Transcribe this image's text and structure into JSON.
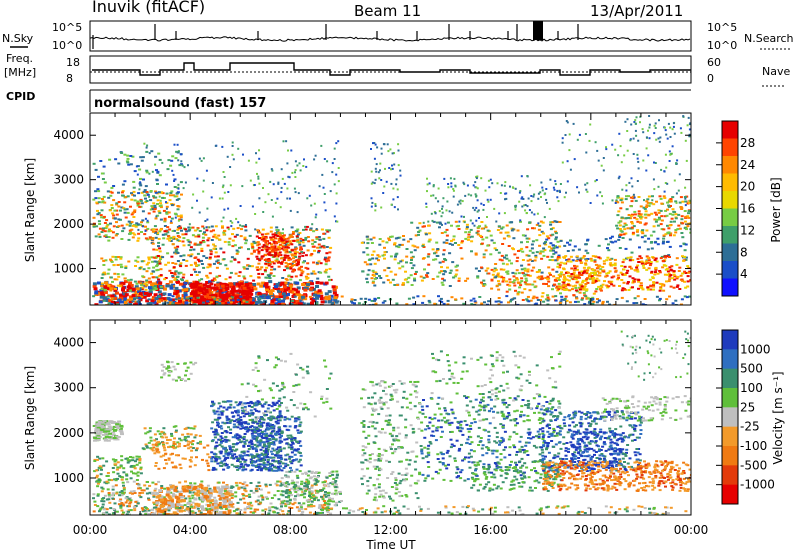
{
  "header": {
    "station": "Inuvik (fitACF)",
    "beam": "Beam 11",
    "date": "13/Apr/2011"
  },
  "sky_panel": {
    "left_label": "N.Sky",
    "right_label": "N.Search",
    "left_ticks": [
      "10^5",
      "10^0"
    ],
    "right_ticks": [
      "10^5",
      "10^0"
    ]
  },
  "freq_panel": {
    "left_label_line1": "Freq.",
    "left_label_line2": "[MHz]",
    "right_label": "Nave",
    "left_ticks": [
      "18",
      "8"
    ],
    "right_ticks": [
      "60",
      "0"
    ]
  },
  "cpid": {
    "label": "CPID",
    "value": "normalsound (fast) 157"
  },
  "chart_data": [
    {
      "type": "heatmap",
      "name": "power",
      "ylabel": "Slant Range [km]",
      "ylim": [
        180,
        4500
      ],
      "y_ticks": [
        "1000",
        "2000",
        "3000",
        "4000"
      ],
      "colorbar_label": "Power [dB]",
      "colorbar_ticks": [
        "28",
        "24",
        "20",
        "16",
        "12",
        "8",
        "4"
      ],
      "colors": [
        "#e60000",
        "#ff4400",
        "#ff8800",
        "#ffbb00",
        "#e8d800",
        "#77cc44",
        "#3f9f6a",
        "#2d6e96",
        "#1a4ec8",
        "#1010ff"
      ]
    },
    {
      "type": "heatmap",
      "name": "velocity",
      "ylabel": "Slant Range [km]",
      "ylim": [
        180,
        4500
      ],
      "y_ticks": [
        "1000",
        "2000",
        "3000",
        "4000"
      ],
      "xlabel": "Time UT",
      "x_ticks": [
        "00:00",
        "04:00",
        "08:00",
        "12:00",
        "16:00",
        "20:00",
        "00:00"
      ],
      "colorbar_label": "Velocity [m s⁻¹]",
      "colorbar_ticks": [
        "1000",
        "500",
        "100",
        "25",
        "-25",
        "-100",
        "-500",
        "-1000"
      ],
      "colors": [
        "#1f3bbd",
        "#2f6fc0",
        "#3a8f6e",
        "#5fbf3a",
        "#bfbfbf",
        "#f39a2a",
        "#f07a12",
        "#e33a0a",
        "#e60000"
      ]
    }
  ]
}
